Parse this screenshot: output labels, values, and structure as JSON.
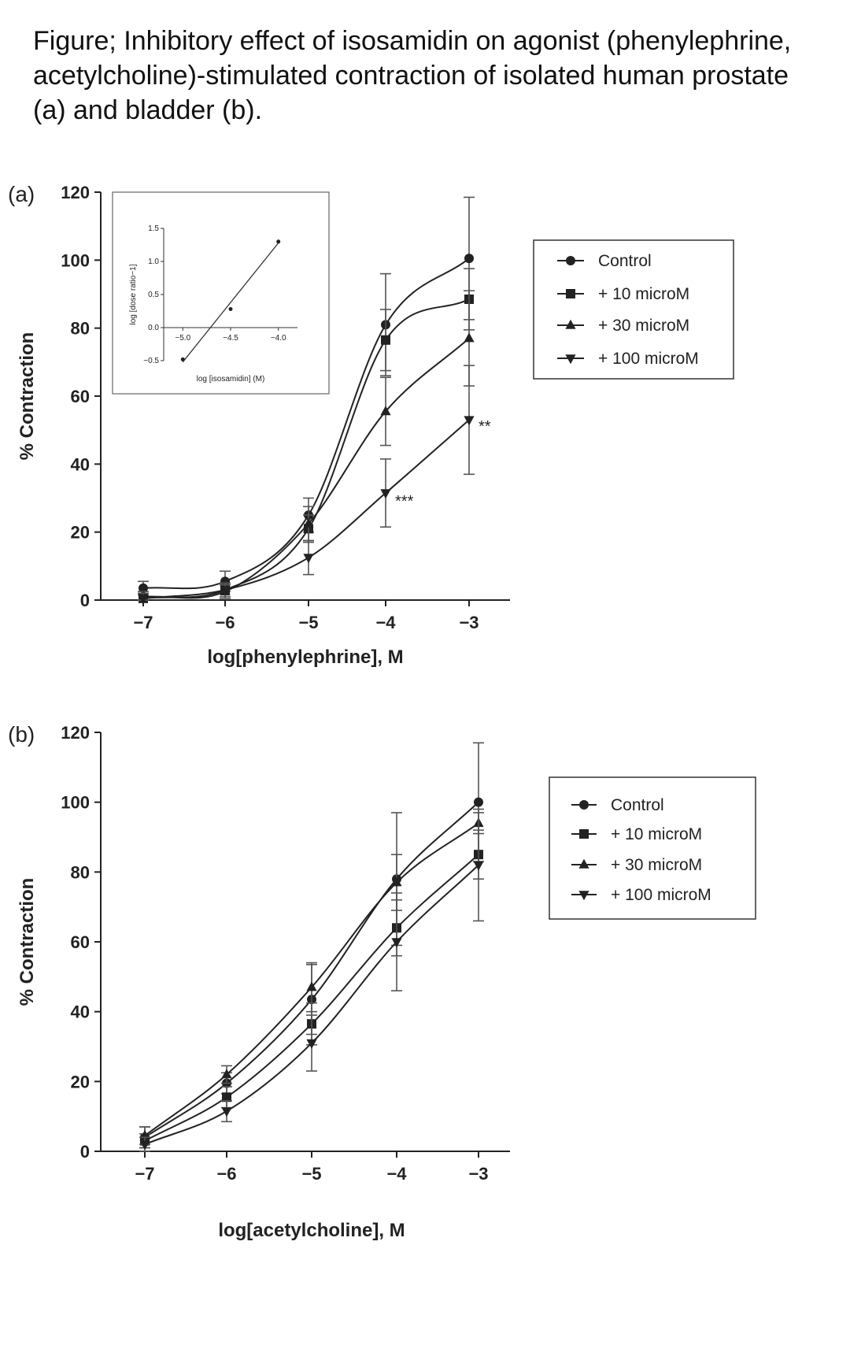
{
  "page": {
    "title": "Figure; Inhibitory effect of isosamidin on agonist (phenylephrine, acetylcholine)-stimulated contraction of isolated human prostate (a) and bladder (b)."
  },
  "chart_data": [
    {
      "type": "line",
      "panel_label": "(a)",
      "xlabel": "log[phenylephrine], M",
      "ylabel": "% Contraction",
      "x": [
        -7,
        -6,
        -5,
        -4,
        -3
      ],
      "xlim": [
        -7.3,
        -2.5
      ],
      "ylim": [
        0,
        120
      ],
      "yticks": [
        0,
        20,
        40,
        60,
        80,
        100,
        120
      ],
      "xtick_labels": [
        "−7",
        "−6",
        "−5",
        "−4",
        "−3"
      ],
      "legend_position": "right",
      "series": [
        {
          "name": "Control",
          "marker": "circle",
          "values": [
            3.5,
            5.5,
            25,
            81,
            100.5
          ],
          "err": [
            2,
            3,
            5,
            15,
            18
          ]
        },
        {
          "name": "+ 10 microM",
          "marker": "square",
          "values": [
            0.5,
            3,
            21,
            76.5,
            88.5
          ],
          "err": [
            1.5,
            2,
            4,
            9,
            9
          ]
        },
        {
          "name": "+ 30 microM",
          "marker": "triangle-up",
          "values": [
            1,
            2.5,
            22.5,
            55.5,
            77
          ],
          "err": [
            1.5,
            2,
            5,
            10,
            14
          ]
        },
        {
          "name": "+ 100 microM",
          "marker": "triangle-down",
          "values": [
            0.5,
            3,
            12.5,
            31.5,
            53
          ],
          "err": [
            1.5,
            2,
            5,
            10,
            16
          ]
        }
      ],
      "annotations": [
        {
          "text": "***",
          "x": -4,
          "y": 29
        },
        {
          "text": "**",
          "x": -3,
          "y": 51
        }
      ],
      "inset": {
        "type": "scatter",
        "xlabel": "log [isosamidin] (M)",
        "ylabel": "log [dose ratio−1]",
        "xlim": [
          -5.2,
          -3.8
        ],
        "ylim": [
          -0.5,
          1.5
        ],
        "xticks": [
          -5.0,
          -4.5,
          -4.0
        ],
        "xtick_labels": [
          "−5.0",
          "−4.5",
          "−4.0"
        ],
        "yticks": [
          -0.5,
          0.0,
          0.5,
          1.0,
          1.5
        ],
        "ytick_labels": [
          "−0.5",
          "0.0",
          "0.5",
          "1.0",
          "1.5"
        ],
        "points": [
          {
            "x": -5.0,
            "y": -0.48
          },
          {
            "x": -4.5,
            "y": 0.28
          },
          {
            "x": -4.0,
            "y": 1.3
          }
        ],
        "fit_line": {
          "x": [
            -5.0,
            -4.0
          ],
          "y": [
            -0.52,
            1.28
          ]
        }
      }
    },
    {
      "type": "line",
      "panel_label": "(b)",
      "xlabel": "log[acetylcholine], M",
      "ylabel": "% Contraction",
      "x": [
        -7,
        -6,
        -5,
        -4,
        -3
      ],
      "xlim": [
        -7.6,
        -2.5
      ],
      "ylim": [
        0,
        120
      ],
      "yticks": [
        0,
        20,
        40,
        60,
        80,
        100,
        120
      ],
      "xtick_labels": [
        "−7",
        "−6",
        "−5",
        "−4",
        "−3"
      ],
      "legend_position": "right",
      "series": [
        {
          "name": "Control",
          "marker": "circle",
          "values": [
            4,
            19.5,
            43.5,
            78,
            100
          ],
          "err": [
            3,
            3,
            10,
            19,
            17
          ]
        },
        {
          "name": "+ 10 microM",
          "marker": "square",
          "values": [
            3,
            15.5,
            36.5,
            64,
            85
          ],
          "err": [
            2,
            3,
            6,
            8,
            7
          ]
        },
        {
          "name": "+ 30 microM",
          "marker": "triangle-up",
          "values": [
            4.5,
            22,
            47,
            77,
            94
          ],
          "err": [
            2.5,
            2.5,
            7,
            8,
            3
          ]
        },
        {
          "name": "+ 100 microM",
          "marker": "triangle-down",
          "values": [
            2,
            11.5,
            31,
            60,
            82
          ],
          "err": [
            2,
            3,
            8,
            14,
            16
          ]
        }
      ]
    }
  ]
}
